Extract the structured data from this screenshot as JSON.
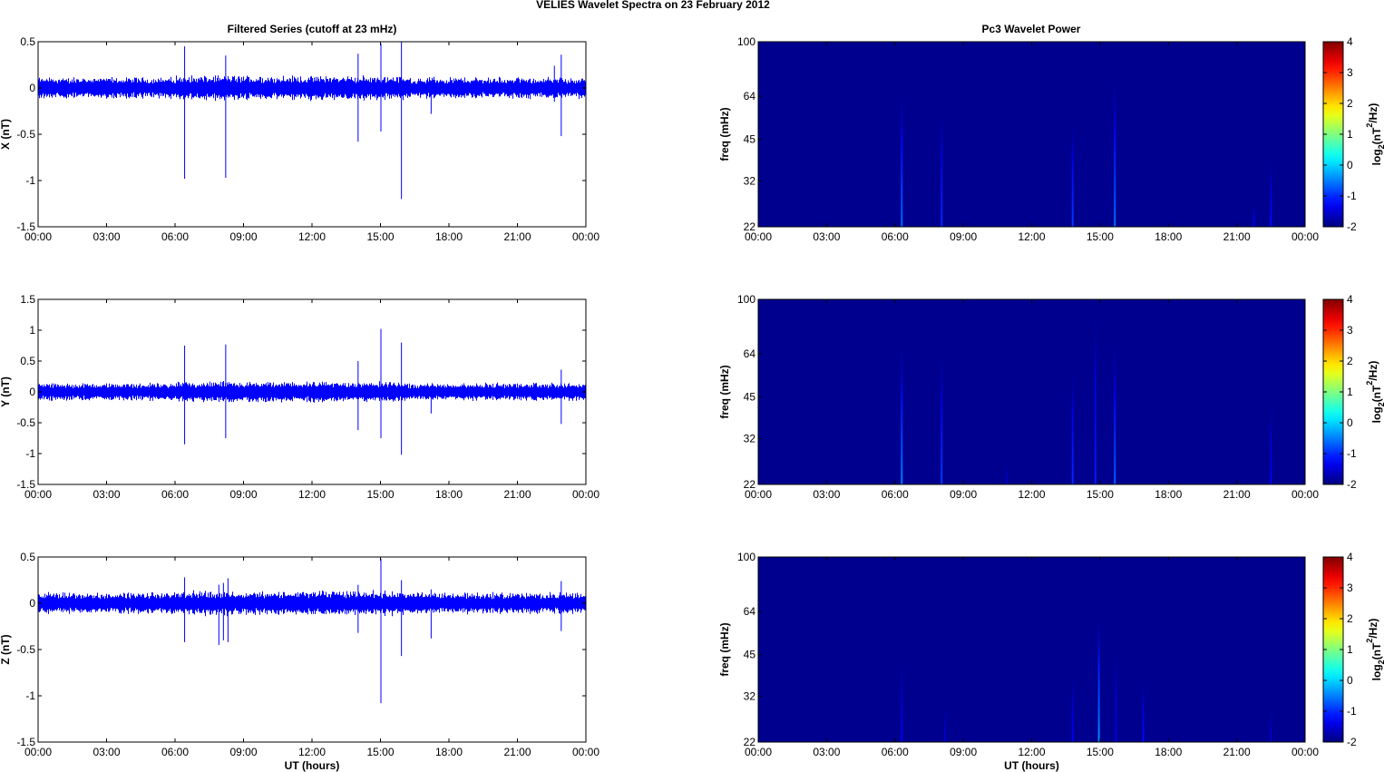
{
  "figure_title": "VELIES Wavelet Spectra on 23 February  2012",
  "colors": {
    "series": "#0000ff",
    "background": "#00008f"
  },
  "colorbar": {
    "label_main": "log",
    "label_sub": "2",
    "label_rest": "(nT",
    "label_sup": "2",
    "label_end": "/Hz)",
    "ticks": [
      "4",
      "3",
      "2",
      "1",
      "0",
      "-1",
      "-2"
    ],
    "range": [
      -2,
      4
    ],
    "colormap": "jet"
  },
  "chart_data": [
    {
      "type": "line",
      "title": "Filtered Series (cutoff at 23 mHz)",
      "ylabel": "X (nT)",
      "xlabel": "",
      "ylim": [
        -1.5,
        0.5
      ],
      "yticks": [
        "0.5",
        "0",
        "-0.5",
        "-1",
        "-1.5"
      ],
      "xticks": [
        "00:00",
        "03:00",
        "06:00",
        "09:00",
        "12:00",
        "15:00",
        "18:00",
        "21:00",
        "00:00"
      ],
      "xlim_hours": [
        0,
        24
      ],
      "noise_amplitude": 0.08,
      "spikes": [
        {
          "t": 6.4,
          "min": -0.98,
          "max": 0.45
        },
        {
          "t": 8.2,
          "min": -0.97,
          "max": 0.35
        },
        {
          "t": 14.0,
          "min": -0.58,
          "max": 0.37
        },
        {
          "t": 15.0,
          "min": -0.47,
          "max": 0.48
        },
        {
          "t": 15.9,
          "min": -1.2,
          "max": 0.5
        },
        {
          "t": 17.2,
          "min": -0.28,
          "max": 0.08
        },
        {
          "t": 22.6,
          "min": -0.15,
          "max": 0.24
        },
        {
          "t": 22.9,
          "min": -0.52,
          "max": 0.36
        }
      ]
    },
    {
      "type": "line",
      "title": "",
      "ylabel": "Y (nT)",
      "xlabel": "",
      "ylim": [
        -1.5,
        1.5
      ],
      "yticks": [
        "1.5",
        "1",
        "0.5",
        "0",
        "-0.5",
        "-1",
        "-1.5"
      ],
      "xticks": [
        "00:00",
        "03:00",
        "06:00",
        "09:00",
        "12:00",
        "15:00",
        "18:00",
        "21:00",
        "00:00"
      ],
      "xlim_hours": [
        0,
        24
      ],
      "noise_amplitude": 0.1,
      "spikes": [
        {
          "t": 6.4,
          "min": -0.85,
          "max": 0.75
        },
        {
          "t": 8.2,
          "min": -0.75,
          "max": 0.77
        },
        {
          "t": 14.0,
          "min": -0.62,
          "max": 0.5
        },
        {
          "t": 15.0,
          "min": -0.75,
          "max": 1.02
        },
        {
          "t": 15.9,
          "min": -1.02,
          "max": 0.8
        },
        {
          "t": 17.2,
          "min": -0.35,
          "max": 0.1
        },
        {
          "t": 22.9,
          "min": -0.52,
          "max": 0.36
        }
      ]
    },
    {
      "type": "line",
      "title": "",
      "ylabel": "Z (nT)",
      "xlabel": "UT (hours)",
      "ylim": [
        -1.5,
        0.5
      ],
      "yticks": [
        "0.5",
        "0",
        "-0.5",
        "-1",
        "-1.5"
      ],
      "xticks": [
        "00:00",
        "03:00",
        "06:00",
        "09:00",
        "12:00",
        "15:00",
        "18:00",
        "21:00",
        "00:00"
      ],
      "xlim_hours": [
        0,
        24
      ],
      "noise_amplitude": 0.08,
      "spikes": [
        {
          "t": 6.4,
          "min": -0.42,
          "max": 0.28
        },
        {
          "t": 7.9,
          "min": -0.45,
          "max": 0.2
        },
        {
          "t": 8.1,
          "min": -0.4,
          "max": 0.22
        },
        {
          "t": 8.3,
          "min": -0.42,
          "max": 0.27
        },
        {
          "t": 14.0,
          "min": -0.32,
          "max": 0.2
        },
        {
          "t": 15.0,
          "min": -1.08,
          "max": 0.48
        },
        {
          "t": 15.9,
          "min": -0.57,
          "max": 0.25
        },
        {
          "t": 17.2,
          "min": -0.38,
          "max": 0.15
        },
        {
          "t": 22.9,
          "min": -0.3,
          "max": 0.24
        }
      ]
    },
    {
      "type": "heatmap",
      "title": "Pc3 Wavelet Power",
      "ylabel": "freq (mHz)",
      "xlabel": "",
      "ylim_mhz": [
        22,
        100
      ],
      "yscale": "log",
      "yticks": [
        "100",
        "64",
        "45",
        "32",
        "22"
      ],
      "ytick_values": [
        100,
        64,
        45,
        32,
        22
      ],
      "xticks": [
        "00:00",
        "03:00",
        "06:00",
        "09:00",
        "12:00",
        "15:00",
        "18:00",
        "21:00",
        "00:00"
      ],
      "xlim_hours": [
        0,
        24
      ],
      "background_value": -2,
      "streaks": [
        {
          "t": 6.3,
          "top_mhz": 70,
          "peak": -0.6
        },
        {
          "t": 8.05,
          "top_mhz": 60,
          "peak": -1.0
        },
        {
          "t": 13.8,
          "top_mhz": 55,
          "peak": -0.9
        },
        {
          "t": 15.65,
          "top_mhz": 80,
          "peak": -0.6
        },
        {
          "t": 21.75,
          "top_mhz": 27,
          "peak": -1.3
        },
        {
          "t": 22.5,
          "top_mhz": 40,
          "peak": -1.2
        }
      ]
    },
    {
      "type": "heatmap",
      "title": "",
      "ylabel": "freq (mHz)",
      "xlabel": "",
      "ylim_mhz": [
        22,
        100
      ],
      "yscale": "log",
      "yticks": [
        "100",
        "64",
        "45",
        "32",
        "22"
      ],
      "ytick_values": [
        100,
        64,
        45,
        32,
        22
      ],
      "xticks": [
        "00:00",
        "03:00",
        "06:00",
        "09:00",
        "12:00",
        "15:00",
        "18:00",
        "21:00",
        "00:00"
      ],
      "xlim_hours": [
        0,
        24
      ],
      "background_value": -2,
      "streaks": [
        {
          "t": 6.3,
          "top_mhz": 72,
          "peak": -0.5
        },
        {
          "t": 8.05,
          "top_mhz": 68,
          "peak": -0.9
        },
        {
          "t": 10.9,
          "top_mhz": 26,
          "peak": -1.5
        },
        {
          "t": 13.8,
          "top_mhz": 60,
          "peak": -1.0
        },
        {
          "t": 14.8,
          "top_mhz": 100,
          "peak": -1.1
        },
        {
          "t": 15.65,
          "top_mhz": 75,
          "peak": -0.7
        },
        {
          "t": 22.5,
          "top_mhz": 45,
          "peak": -1.3
        }
      ]
    },
    {
      "type": "heatmap",
      "title": "",
      "ylabel": "freq (mHz)",
      "xlabel": "UT (hours)",
      "ylim_mhz": [
        22,
        100
      ],
      "yscale": "log",
      "yticks": [
        "100",
        "64",
        "45",
        "32",
        "22"
      ],
      "ytick_values": [
        100,
        64,
        45,
        32,
        22
      ],
      "xticks": [
        "00:00",
        "03:00",
        "06:00",
        "09:00",
        "12:00",
        "15:00",
        "18:00",
        "21:00",
        "00:00"
      ],
      "xlim_hours": [
        0,
        24
      ],
      "background_value": -2,
      "streaks": [
        {
          "t": 6.3,
          "top_mhz": 45,
          "peak": -1.3
        },
        {
          "t": 8.2,
          "top_mhz": 30,
          "peak": -1.5
        },
        {
          "t": 13.8,
          "top_mhz": 40,
          "peak": -1.3
        },
        {
          "t": 14.95,
          "top_mhz": 65,
          "peak": -0.4
        },
        {
          "t": 15.7,
          "top_mhz": 50,
          "peak": -1.4
        },
        {
          "t": 16.9,
          "top_mhz": 38,
          "peak": -1.2
        },
        {
          "t": 22.5,
          "top_mhz": 30,
          "peak": -1.5
        }
      ]
    }
  ]
}
